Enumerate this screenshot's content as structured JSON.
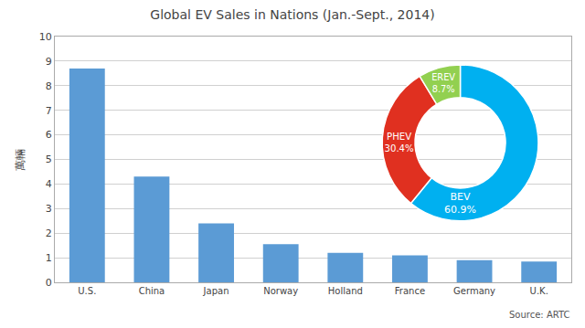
{
  "chart_data": [
    {
      "type": "bar",
      "title": "Global EV Sales in Nations (Jan.-Sept., 2014)",
      "ylabel": "萬輛",
      "categories": [
        "U.S.",
        "China",
        "Japan",
        "Norway",
        "Holland",
        "France",
        "Germany",
        "U.K."
      ],
      "values": [
        8.7,
        4.3,
        2.4,
        1.55,
        1.2,
        1.1,
        0.9,
        0.85
      ],
      "color": "#5B9BD5",
      "ylim": [
        0,
        10
      ],
      "yticks": [
        0,
        1,
        2,
        3,
        4,
        5,
        6,
        7,
        8,
        9,
        10
      ],
      "grid": true,
      "annotations": [
        "Source: ARTC"
      ]
    },
    {
      "type": "pie",
      "categories": [
        "BEV",
        "PHEV",
        "EREV"
      ],
      "values": [
        60.9,
        30.4,
        8.7
      ],
      "value_labels": [
        "60.9%",
        "30.4%",
        "8.7%"
      ],
      "colors": [
        "#00B0F0",
        "#E03020",
        "#92D050"
      ],
      "data_labels": true
    }
  ]
}
